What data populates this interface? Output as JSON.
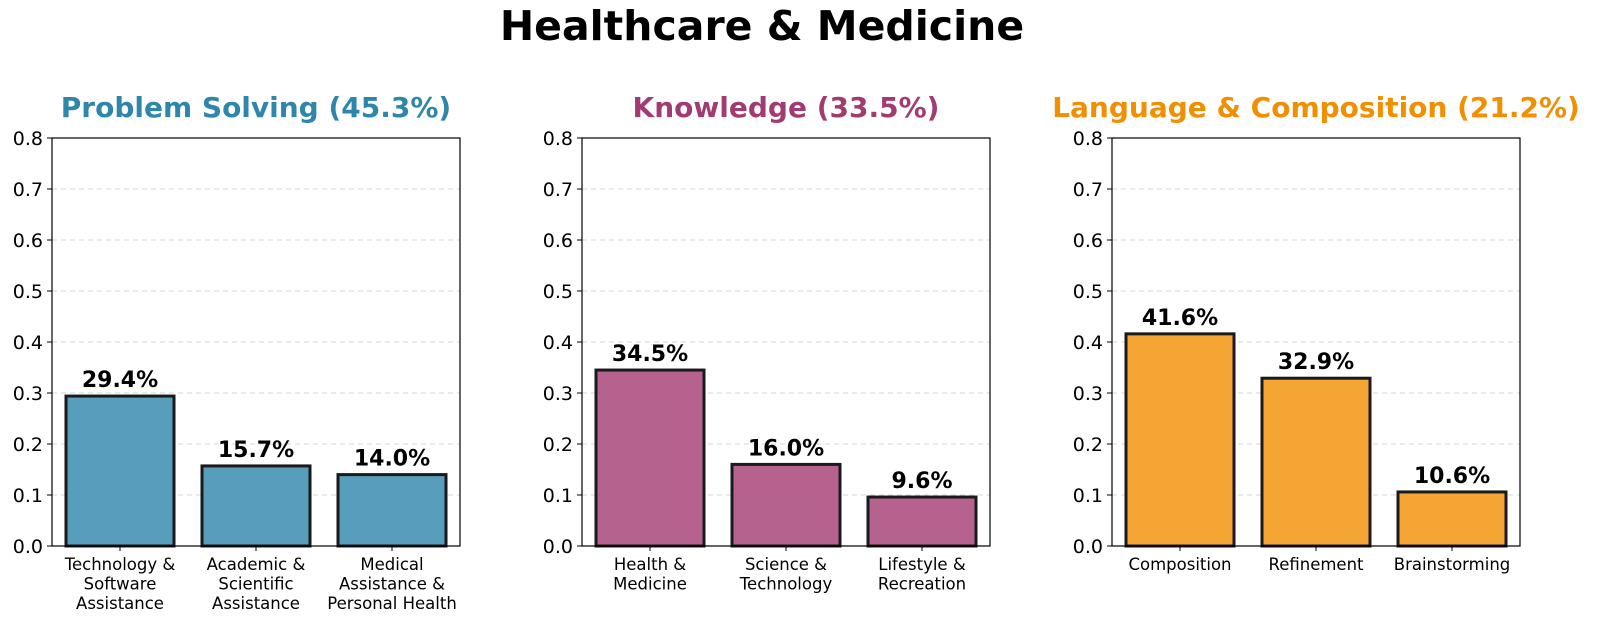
{
  "title": "Healthcare & Medicine",
  "chart_data": [
    {
      "type": "bar",
      "title": "Problem Solving (45.3%)",
      "color": "#2e86ab",
      "categories": [
        "Technology & Software Assistance",
        "Academic & Scientific Assistance",
        "Medical Assistance & Personal Health"
      ],
      "category_lines": [
        [
          "Technology &",
          "Software",
          "Assistance"
        ],
        [
          "Academic &",
          "Scientific",
          "Assistance"
        ],
        [
          "Medical",
          "Assistance &",
          "Personal Health"
        ]
      ],
      "values": [
        0.294,
        0.157,
        0.14
      ],
      "value_labels": [
        "29.4%",
        "15.7%",
        "14.0%"
      ],
      "ylim": [
        0,
        0.8
      ],
      "yticks": [
        "0.0",
        "0.1",
        "0.2",
        "0.3",
        "0.4",
        "0.5",
        "0.6",
        "0.7",
        "0.8"
      ],
      "grid": true
    },
    {
      "type": "bar",
      "title": "Knowledge (33.5%)",
      "color": "#a23b72",
      "categories": [
        "Health & Medicine",
        "Science & Technology",
        "Lifestyle & Recreation"
      ],
      "category_lines": [
        [
          "Health &",
          "Medicine"
        ],
        [
          "Science &",
          "Technology"
        ],
        [
          "Lifestyle &",
          "Recreation"
        ]
      ],
      "values": [
        0.345,
        0.16,
        0.096
      ],
      "value_labels": [
        "34.5%",
        "16.0%",
        "9.6%"
      ],
      "ylim": [
        0,
        0.8
      ],
      "yticks": [
        "0.0",
        "0.1",
        "0.2",
        "0.3",
        "0.4",
        "0.5",
        "0.6",
        "0.7",
        "0.8"
      ],
      "grid": true
    },
    {
      "type": "bar",
      "title": "Language & Composition (21.2%)",
      "color": "#f18f01",
      "categories": [
        "Composition",
        "Refinement",
        "Brainstorming"
      ],
      "category_lines": [
        [
          "Composition"
        ],
        [
          "Refinement"
        ],
        [
          "Brainstorming"
        ]
      ],
      "values": [
        0.416,
        0.329,
        0.106
      ],
      "value_labels": [
        "41.6%",
        "32.9%",
        "10.6%"
      ],
      "ylim": [
        0,
        0.8
      ],
      "yticks": [
        "0.0",
        "0.1",
        "0.2",
        "0.3",
        "0.4",
        "0.5",
        "0.6",
        "0.7",
        "0.8"
      ],
      "grid": true
    }
  ]
}
